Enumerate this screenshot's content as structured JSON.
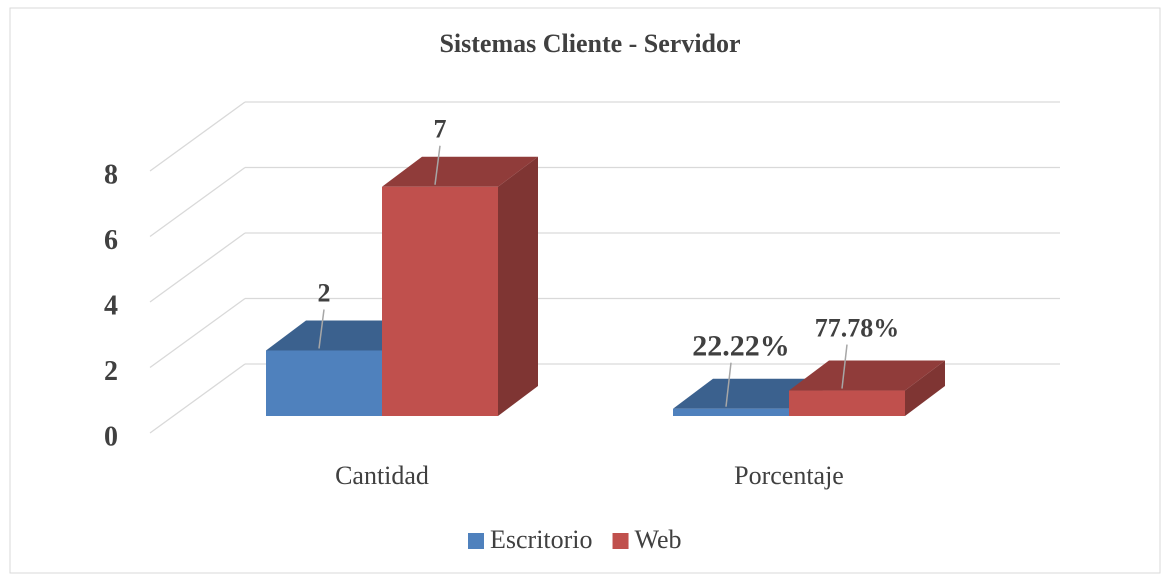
{
  "chart_data": {
    "type": "bar3d",
    "title": "Sistemas Cliente - Servidor",
    "categories": [
      "Cantidad",
      "Porcentaje"
    ],
    "series": [
      {
        "name": "Escritorio",
        "color": "#4f81bd",
        "values": [
          2,
          0.2222
        ],
        "value_labels": [
          "2",
          "22.22%"
        ]
      },
      {
        "name": "Web",
        "color": "#c0504d",
        "values": [
          7,
          0.7778
        ],
        "value_labels": [
          "7",
          "77.78%"
        ]
      }
    ],
    "ylim": [
      0,
      8
    ],
    "yticks": [
      0,
      2,
      4,
      6,
      8
    ],
    "grid": true,
    "legend": "bottom"
  }
}
